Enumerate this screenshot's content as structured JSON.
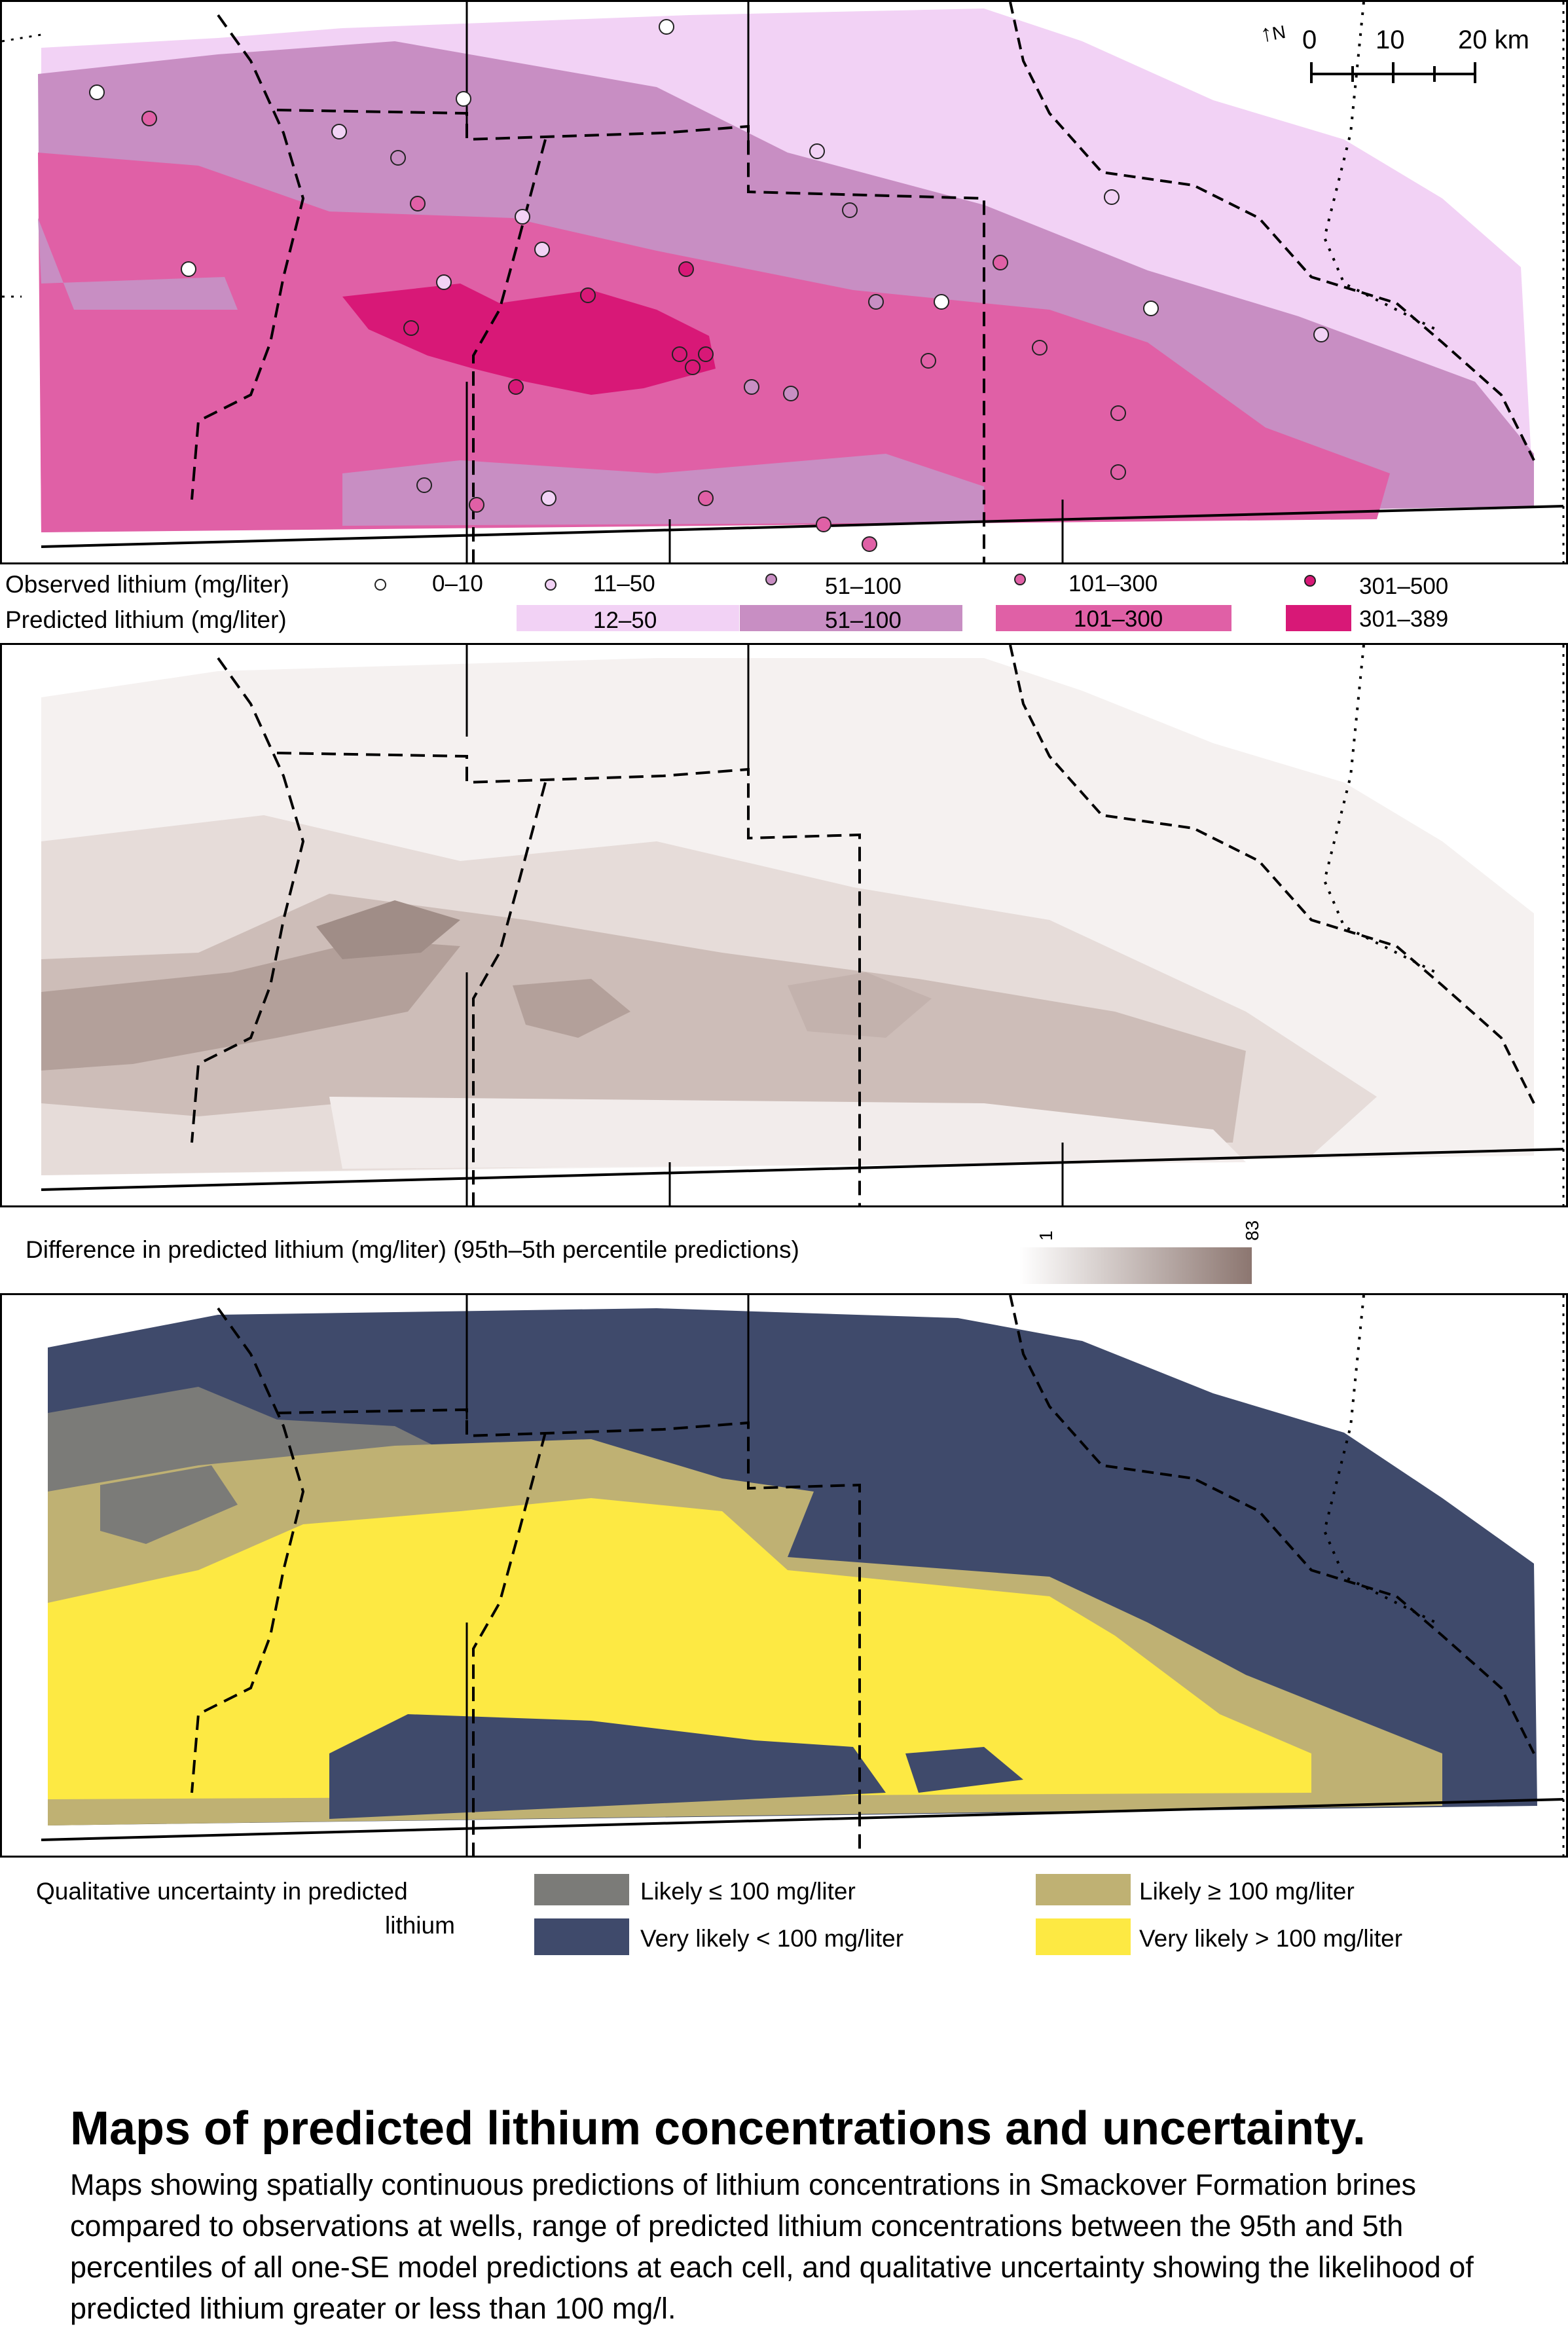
{
  "scale_bar": {
    "north_symbol": "N",
    "ticks": [
      "0",
      "10",
      "20 km"
    ]
  },
  "legend_top": {
    "observed_label": "Observed lithium (mg/liter)",
    "predicted_label": "Predicted lithium (mg/liter)",
    "observed_classes": [
      {
        "label": "0–10",
        "color": "#ffffff"
      },
      {
        "label": "11–50",
        "color": "#f2d2f5"
      },
      {
        "label": "51–100",
        "color": "#c88ec3"
      },
      {
        "label": "101–300",
        "color": "#e060a6"
      },
      {
        "label": "301–500",
        "color": "#d81877"
      }
    ],
    "predicted_classes": [
      {
        "label": "12–50",
        "color": "#f2d2f5"
      },
      {
        "label": "51–100",
        "color": "#c88ec3"
      },
      {
        "label": "101–300",
        "color": "#e060a6"
      },
      {
        "label": "301–389",
        "color": "#d81877"
      }
    ]
  },
  "legend_middle": {
    "label": "Difference in predicted lithium (mg/liter)  (95th–5th percentile predictions)",
    "min_label": "1",
    "max_label": "83",
    "min_color": "#ffffff",
    "max_color": "#8c7670"
  },
  "legend_bottom": {
    "label_line1": "Qualitative uncertainty in predicted",
    "label_line2": "lithium",
    "classes": [
      {
        "label": "Likely ≤ 100 mg/liter",
        "color": "#7b7b78"
      },
      {
        "label": "Very likely < 100 mg/liter",
        "color": "#3f4a6b"
      },
      {
        "label": "Likely ≥ 100 mg/liter",
        "color": "#bfb173"
      },
      {
        "label": "Very likely > 100 mg/liter",
        "color": "#fde943"
      }
    ]
  },
  "caption": {
    "title": "Maps of predicted lithium concentrations and uncertainty.",
    "body": "Maps showing spatially continuous predictions of lithium concentrations in Smackover Formation brines compared to observations at wells, range of predicted lithium concentrations between the 95th and 5th percentiles of all one-SE model predictions at each cell, and qualitative uncertainty showing the likelihood of predicted lithium greater or less than 100 mg/l."
  }
}
